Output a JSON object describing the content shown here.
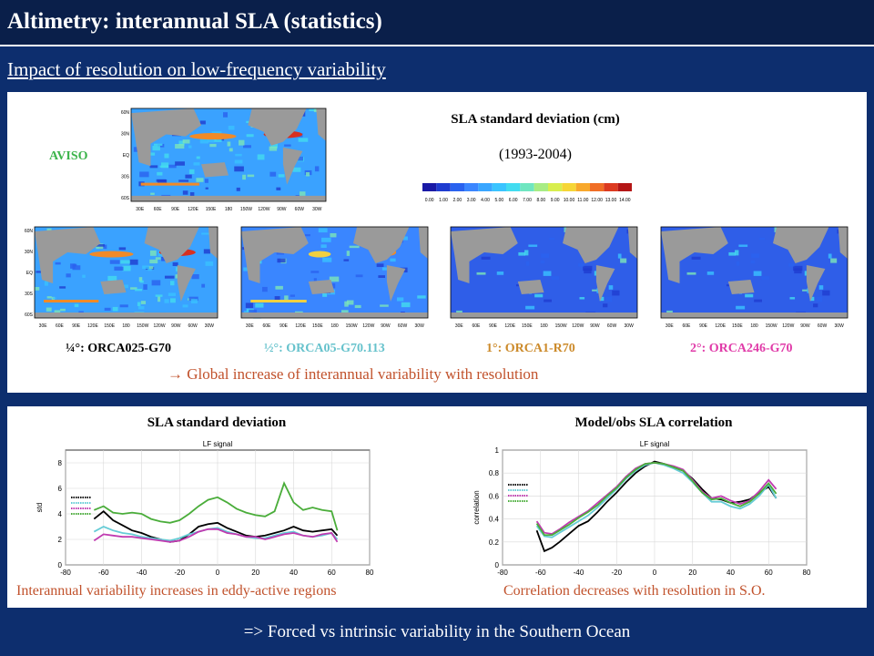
{
  "header": {
    "title": "Altimetry: interannual SLA (statistics)"
  },
  "subtitle": "Impact of resolution on low-frequency variability",
  "top_panel": {
    "aviso_label": "AVISO",
    "colorbar_title": "SLA standard deviation (cm)",
    "period": "(1993-2004)",
    "colorbar_ticks": [
      "0.00",
      "1.00",
      "2.00",
      "3.00",
      "4.00",
      "5.00",
      "6.00",
      "7.00",
      "8.00",
      "9.00",
      "10.00",
      "11.00",
      "12.00",
      "13.00",
      "14.00"
    ],
    "colorbar_colors": [
      "#1a1aa6",
      "#1f3cd0",
      "#2a62ef",
      "#3b86ff",
      "#39a6ff",
      "#3ac4ff",
      "#42dcf0",
      "#6fe6c0",
      "#a8ec84",
      "#d8ee4e",
      "#f6d636",
      "#f8a82c",
      "#f06e26",
      "#dc3a20",
      "#b41616"
    ],
    "models": [
      {
        "label": "¼°: ORCA025-G70",
        "color": "#000000"
      },
      {
        "label": "½°: ORCA05-G70.113",
        "color": "#66c2cc"
      },
      {
        "label": "1°: ORCA1-R70",
        "color": "#cc8a2a"
      },
      {
        "label": "2°: ORCA246-G70",
        "color": "#e03aa8"
      }
    ],
    "conclusion": "→ Global increase of interannual variability with resolution",
    "lon_ticks": [
      "30E",
      "60E",
      "90E",
      "120E",
      "150E",
      "180",
      "150W",
      "120W",
      "90W",
      "60W",
      "30W"
    ],
    "lat_ticks": [
      "60N",
      "30N",
      "EQ",
      "30S",
      "60S"
    ]
  },
  "bottom_panel": {
    "left_title": "SLA standard deviation",
    "right_title": "Model/obs SLA correlation",
    "left_caption": "Interannual variability increases in eddy-active regions",
    "right_caption": "Correlation decreases with resolution in S.O."
  },
  "footer": "=> Forced vs intrinsic variability in the Southern Ocean",
  "chart_data": [
    {
      "type": "line",
      "title": "LF signal",
      "xlabel": "",
      "ylabel": "std",
      "xlim": [
        -80,
        80
      ],
      "ylim": [
        0,
        9
      ],
      "xticks": [
        -80,
        -60,
        -40,
        -20,
        0,
        20,
        40,
        60,
        80
      ],
      "yticks": [
        0,
        2,
        4,
        6,
        8
      ],
      "x": [
        -65,
        -60,
        -55,
        -50,
        -45,
        -40,
        -35,
        -30,
        -25,
        -20,
        -15,
        -10,
        -5,
        0,
        5,
        10,
        15,
        20,
        25,
        30,
        35,
        40,
        45,
        50,
        55,
        60,
        63
      ],
      "series": [
        {
          "color": "#000000",
          "values": [
            3.6,
            4.2,
            3.5,
            3.1,
            2.7,
            2.5,
            2.2,
            2.0,
            1.8,
            1.9,
            2.4,
            3.0,
            3.2,
            3.3,
            2.9,
            2.6,
            2.3,
            2.2,
            2.3,
            2.5,
            2.7,
            3.0,
            2.7,
            2.6,
            2.7,
            2.8,
            2.3
          ]
        },
        {
          "color": "#66ccd6",
          "values": [
            2.6,
            3.0,
            2.7,
            2.5,
            2.4,
            2.2,
            2.1,
            2.0,
            1.9,
            2.1,
            2.4,
            2.6,
            2.8,
            2.9,
            2.6,
            2.4,
            2.2,
            2.1,
            2.1,
            2.3,
            2.5,
            2.6,
            2.3,
            2.2,
            2.3,
            2.5,
            2.0
          ]
        },
        {
          "color": "#c03ab0",
          "values": [
            1.9,
            2.4,
            2.3,
            2.2,
            2.2,
            2.1,
            2.0,
            1.9,
            1.8,
            1.9,
            2.2,
            2.6,
            2.8,
            2.8,
            2.5,
            2.4,
            2.2,
            2.2,
            2.0,
            2.2,
            2.4,
            2.5,
            2.3,
            2.2,
            2.4,
            2.5,
            1.8
          ]
        },
        {
          "color": "#4aad3a",
          "values": [
            4.3,
            4.6,
            4.1,
            4.0,
            4.1,
            4.0,
            3.6,
            3.4,
            3.3,
            3.5,
            4.0,
            4.6,
            5.1,
            5.3,
            4.9,
            4.4,
            4.1,
            3.9,
            3.8,
            4.2,
            6.4,
            4.9,
            4.3,
            4.5,
            4.3,
            4.2,
            2.7
          ]
        }
      ]
    },
    {
      "type": "line",
      "title": "LF signal",
      "xlabel": "",
      "ylabel": "correlation",
      "xlim": [
        -80,
        80
      ],
      "ylim": [
        0,
        1
      ],
      "xticks": [
        -80,
        -60,
        -40,
        -20,
        0,
        20,
        40,
        60,
        80
      ],
      "yticks": [
        0,
        0.2,
        0.4,
        0.6,
        0.8,
        1
      ],
      "x": [
        -62,
        -58,
        -54,
        -50,
        -45,
        -40,
        -35,
        -30,
        -25,
        -20,
        -15,
        -10,
        -5,
        0,
        5,
        10,
        15,
        20,
        25,
        30,
        35,
        40,
        45,
        50,
        55,
        60,
        64
      ],
      "series": [
        {
          "color": "#000000",
          "values": [
            0.3,
            0.12,
            0.15,
            0.2,
            0.27,
            0.34,
            0.38,
            0.46,
            0.55,
            0.63,
            0.72,
            0.8,
            0.86,
            0.9,
            0.88,
            0.85,
            0.82,
            0.75,
            0.66,
            0.58,
            0.57,
            0.54,
            0.55,
            0.57,
            0.63,
            0.68,
            0.58
          ]
        },
        {
          "color": "#66ccd6",
          "values": [
            0.34,
            0.25,
            0.24,
            0.28,
            0.33,
            0.38,
            0.43,
            0.5,
            0.58,
            0.66,
            0.75,
            0.82,
            0.87,
            0.89,
            0.87,
            0.84,
            0.8,
            0.72,
            0.63,
            0.55,
            0.55,
            0.51,
            0.49,
            0.53,
            0.6,
            0.7,
            0.58
          ]
        },
        {
          "color": "#c03ab0",
          "values": [
            0.38,
            0.28,
            0.27,
            0.31,
            0.37,
            0.42,
            0.47,
            0.54,
            0.61,
            0.68,
            0.77,
            0.84,
            0.88,
            0.89,
            0.88,
            0.86,
            0.83,
            0.74,
            0.64,
            0.58,
            0.6,
            0.56,
            0.53,
            0.56,
            0.64,
            0.74,
            0.66
          ]
        },
        {
          "color": "#4aad3a",
          "values": [
            0.36,
            0.26,
            0.26,
            0.3,
            0.35,
            0.41,
            0.46,
            0.52,
            0.6,
            0.67,
            0.76,
            0.83,
            0.88,
            0.89,
            0.88,
            0.85,
            0.82,
            0.73,
            0.63,
            0.57,
            0.58,
            0.54,
            0.51,
            0.55,
            0.62,
            0.71,
            0.62
          ]
        }
      ]
    }
  ]
}
